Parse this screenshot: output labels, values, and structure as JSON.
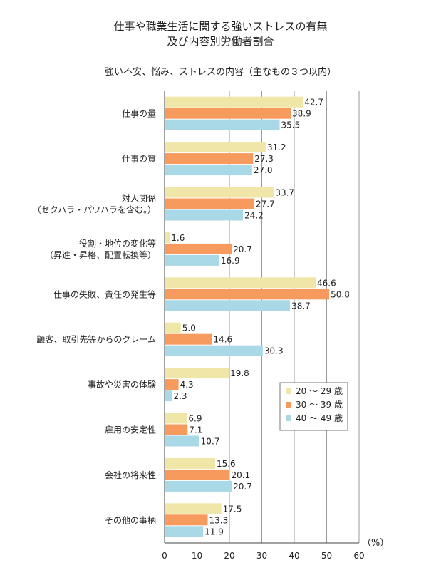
{
  "chart_data": {
    "type": "bar",
    "orientation": "horizontal",
    "title_line1": "仕事や職業生活に関する強いストレスの有無",
    "title_line2": "及び内容別労働者割合",
    "subtitle": "強い不安、悩み、ストレスの内容（主なもの３つ以内）",
    "unit_label": "（%）",
    "xlim": [
      0,
      60
    ],
    "xticks": [
      0,
      10,
      20,
      30,
      40,
      50,
      60
    ],
    "grid": true,
    "legend_position": "lower-right",
    "categories": [
      [
        "仕事の量"
      ],
      [
        "仕事の質"
      ],
      [
        "対人関係",
        "（セクハラ・パワハラを含む。）"
      ],
      [
        "役割・地位の変化等",
        "（昇進・昇格、配置転換等）"
      ],
      [
        "仕事の失敗、責任の発生等"
      ],
      [
        "顧客、取引先等からのクレーム"
      ],
      [
        "事故や災害の体験"
      ],
      [
        "雇用の安定性"
      ],
      [
        "会社の将来性"
      ],
      [
        "その他の事柄"
      ]
    ],
    "series": [
      {
        "name": "20 〜 29 歳",
        "color": "#f0e6a8",
        "values": [
          42.7,
          31.2,
          33.7,
          1.6,
          46.6,
          5.0,
          19.8,
          6.9,
          15.6,
          17.5
        ]
      },
      {
        "name": "30 〜 39 歳",
        "color": "#f79a5e",
        "values": [
          38.9,
          27.3,
          27.7,
          20.7,
          50.8,
          14.6,
          4.3,
          7.1,
          20.1,
          13.3
        ]
      },
      {
        "name": "40 〜 49 歳",
        "color": "#a9d8e6",
        "values": [
          35.5,
          27.0,
          24.2,
          16.9,
          38.7,
          30.3,
          2.3,
          10.7,
          20.7,
          11.9
        ]
      }
    ]
  }
}
